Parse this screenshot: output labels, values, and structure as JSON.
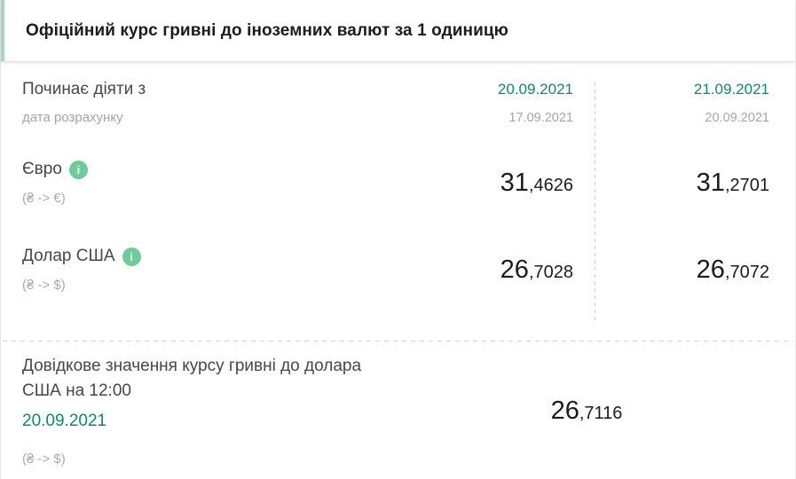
{
  "header": {
    "title": "Офіційний курс гривні до іноземних валют за 1 одиницю"
  },
  "rates": {
    "effective_label": "Починає діяти з",
    "calc_label": "дата розрахунку",
    "date_columns": [
      {
        "effective": "20.09.2021",
        "calculation": "17.09.2021"
      },
      {
        "effective": "21.09.2021",
        "calculation": "20.09.2021"
      }
    ],
    "rows": [
      {
        "label": "Євро",
        "pair": "(₴ -> €)",
        "values": [
          {
            "int": "31",
            "frac": ",4626"
          },
          {
            "int": "31",
            "frac": ",2701"
          }
        ]
      },
      {
        "label": "Долар США",
        "pair": "(₴ -> $)",
        "values": [
          {
            "int": "26",
            "frac": ",7028"
          },
          {
            "int": "26",
            "frac": ",7072"
          }
        ]
      }
    ]
  },
  "reference": {
    "title": "Довідкове значення курсу гривні до долара США на 12:00",
    "date": "20.09.2021",
    "pair": "(₴ -> $)",
    "value": {
      "int": "26",
      "frac": ",7116"
    }
  },
  "icons": {
    "info_glyph": "i"
  },
  "colors": {
    "accent_green_text": "#0f8a63",
    "info_icon_bg": "#6fcb9a",
    "header_accent_bar": "#a2d9bd",
    "label_dark": "#474747",
    "muted_gray": "#a5a5a5",
    "value_dark": "#1c1c1c"
  }
}
